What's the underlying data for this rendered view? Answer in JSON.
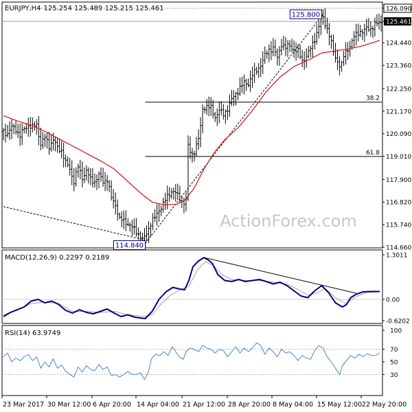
{
  "header": {
    "title": "EURJPY,H4",
    "ohlc": "125.254 125.489 125.215 125.461"
  },
  "colors": {
    "bars": "#000000",
    "ma": "#d02020",
    "macd": "#000080",
    "signal": "#a0a0a0",
    "rsi": "#4a86c8",
    "fib": "#000000",
    "grid": "#9a9a9a",
    "label_box": "#000080",
    "current_price_box": "#000000"
  },
  "chart_data": [
    {
      "type": "candlestick",
      "panel": "price",
      "ylim": [
        114.66,
        126.09
      ],
      "y_ticks": [
        "126.090",
        "125.461",
        "124.440",
        "123.360",
        "122.250",
        "121.170",
        "120.090",
        "119.010",
        "117.900",
        "116.820",
        "115.740",
        "114.660"
      ],
      "current_price": "125.461",
      "x_ticks": [
        "23 Mar 2017",
        "30 Mar 12:00",
        "6 Apr 20:00",
        "14 Apr 04:00",
        "21 Apr 12:00",
        "28 Apr 20:00",
        "8 May 04:00",
        "15 May 12:00",
        "22 May 20:00"
      ],
      "close_path": [
        [
          0,
          120.2
        ],
        [
          6,
          120.1
        ],
        [
          12,
          120.4
        ],
        [
          18,
          120.3
        ],
        [
          24,
          120.0
        ],
        [
          30,
          120.3
        ],
        [
          36,
          120.5
        ],
        [
          42,
          120.4
        ],
        [
          48,
          120.5
        ],
        [
          54,
          119.6
        ],
        [
          60,
          119.9
        ],
        [
          66,
          119.5
        ],
        [
          72,
          119.8
        ],
        [
          78,
          119.4
        ],
        [
          84,
          119.3
        ],
        [
          90,
          118.7
        ],
        [
          96,
          118.4
        ],
        [
          102,
          117.8
        ],
        [
          108,
          118.5
        ],
        [
          114,
          118.0
        ],
        [
          120,
          118.3
        ],
        [
          126,
          117.9
        ],
        [
          132,
          117.8
        ],
        [
          138,
          118.1
        ],
        [
          144,
          117.8
        ],
        [
          150,
          117.9
        ],
        [
          156,
          117.0
        ],
        [
          162,
          116.7
        ],
        [
          168,
          116.0
        ],
        [
          174,
          115.9
        ],
        [
          180,
          115.8
        ],
        [
          186,
          115.6
        ],
        [
          192,
          115.4
        ],
        [
          198,
          115.2
        ],
        [
          202,
          114.95
        ],
        [
          208,
          115.4
        ],
        [
          214,
          115.9
        ],
        [
          220,
          116.1
        ],
        [
          226,
          116.5
        ],
        [
          232,
          116.8
        ],
        [
          238,
          117.1
        ],
        [
          244,
          117.4
        ],
        [
          248,
          117.3
        ],
        [
          254,
          117.0
        ],
        [
          260,
          116.8
        ],
        [
          264,
          116.9
        ],
        [
          266,
          119.6
        ],
        [
          270,
          119.2
        ],
        [
          274,
          119.1
        ],
        [
          280,
          119.6
        ],
        [
          284,
          120.1
        ],
        [
          288,
          121.3
        ],
        [
          294,
          121.4
        ],
        [
          300,
          121.3
        ],
        [
          306,
          120.9
        ],
        [
          312,
          121.2
        ],
        [
          318,
          121.0
        ],
        [
          324,
          121.3
        ],
        [
          330,
          121.7
        ],
        [
          336,
          122.0
        ],
        [
          342,
          122.3
        ],
        [
          348,
          122.5
        ],
        [
          354,
          122.5
        ],
        [
          360,
          122.9
        ],
        [
          366,
          123.1
        ],
        [
          372,
          123.4
        ],
        [
          378,
          123.8
        ],
        [
          384,
          124.1
        ],
        [
          390,
          124.2
        ],
        [
          396,
          123.7
        ],
        [
          402,
          124.4
        ],
        [
          408,
          124.2
        ],
        [
          414,
          124.3
        ],
        [
          420,
          124.1
        ],
        [
          426,
          124.0
        ],
        [
          432,
          123.6
        ],
        [
          436,
          123.7
        ],
        [
          442,
          124.0
        ],
        [
          448,
          124.5
        ],
        [
          452,
          124.8
        ],
        [
          456,
          125.2
        ],
        [
          460,
          125.8
        ],
        [
          466,
          125.3
        ],
        [
          470,
          124.9
        ],
        [
          474,
          124.4
        ],
        [
          478,
          123.9
        ],
        [
          484,
          123.5
        ],
        [
          488,
          123.2
        ],
        [
          492,
          123.8
        ],
        [
          496,
          124.1
        ],
        [
          502,
          124.3
        ],
        [
          508,
          124.8
        ],
        [
          514,
          125.0
        ],
        [
          520,
          124.9
        ],
        [
          526,
          125.2
        ],
        [
          532,
          125.1
        ],
        [
          538,
          125.3
        ],
        [
          544,
          125.461
        ]
      ],
      "ma_path": [
        [
          0,
          120.95
        ],
        [
          20,
          120.7
        ],
        [
          40,
          120.5
        ],
        [
          60,
          120.2
        ],
        [
          80,
          119.85
        ],
        [
          100,
          119.5
        ],
        [
          120,
          119.15
        ],
        [
          140,
          118.8
        ],
        [
          160,
          118.4
        ],
        [
          180,
          117.8
        ],
        [
          200,
          117.2
        ],
        [
          215,
          116.82
        ],
        [
          230,
          116.7
        ],
        [
          250,
          116.7
        ],
        [
          262,
          116.9
        ],
        [
          276,
          117.5
        ],
        [
          290,
          118.4
        ],
        [
          305,
          119.2
        ],
        [
          320,
          119.8
        ],
        [
          340,
          120.4
        ],
        [
          360,
          121.2
        ],
        [
          380,
          122.1
        ],
        [
          400,
          122.8
        ],
        [
          420,
          123.3
        ],
        [
          440,
          123.6
        ],
        [
          460,
          123.95
        ],
        [
          480,
          124.05
        ],
        [
          500,
          124.15
        ],
        [
          520,
          124.3
        ],
        [
          544,
          124.55
        ]
      ],
      "trendlines": [
        {
          "from": [
            0,
            116.6
          ],
          "to": [
            205,
            115.0
          ]
        },
        {
          "from": [
            205,
            114.84
          ],
          "to": [
            462,
            125.8
          ]
        }
      ],
      "labels": [
        {
          "text": "125.800",
          "at": [
            462,
            125.8
          ]
        },
        {
          "text": "114.840",
          "at": [
            205,
            114.84
          ]
        }
      ],
      "fib_levels": [
        {
          "label": "38.2",
          "value": 121.6
        },
        {
          "label": "61.8",
          "value": 119.0
        }
      ],
      "watermark": "ActionForex.com"
    },
    {
      "type": "line",
      "panel": "macd",
      "title": "MACD(12,26,9) 0.2297 0.2189",
      "ylim": [
        -0.6202,
        1.3011
      ],
      "y_ticks": [
        "1.3011",
        "0.00",
        "-0.6202"
      ],
      "macd_path": [
        [
          0,
          -0.5
        ],
        [
          10,
          -0.38
        ],
        [
          20,
          -0.3
        ],
        [
          30,
          -0.22
        ],
        [
          40,
          -0.05
        ],
        [
          50,
          0.0
        ],
        [
          60,
          -0.1
        ],
        [
          70,
          -0.05
        ],
        [
          80,
          -0.15
        ],
        [
          90,
          -0.32
        ],
        [
          100,
          -0.4
        ],
        [
          110,
          -0.3
        ],
        [
          120,
          -0.38
        ],
        [
          130,
          -0.42
        ],
        [
          140,
          -0.35
        ],
        [
          150,
          -0.28
        ],
        [
          160,
          -0.4
        ],
        [
          170,
          -0.5
        ],
        [
          180,
          -0.45
        ],
        [
          190,
          -0.52
        ],
        [
          205,
          -0.56
        ],
        [
          215,
          -0.35
        ],
        [
          225,
          0.0
        ],
        [
          235,
          0.22
        ],
        [
          245,
          0.35
        ],
        [
          255,
          0.3
        ],
        [
          262,
          0.28
        ],
        [
          268,
          0.55
        ],
        [
          274,
          0.95
        ],
        [
          282,
          1.12
        ],
        [
          290,
          1.22
        ],
        [
          296,
          1.15
        ],
        [
          302,
          1.05
        ],
        [
          310,
          0.72
        ],
        [
          320,
          0.55
        ],
        [
          330,
          0.52
        ],
        [
          340,
          0.58
        ],
        [
          350,
          0.52
        ],
        [
          360,
          0.55
        ],
        [
          370,
          0.58
        ],
        [
          380,
          0.52
        ],
        [
          390,
          0.45
        ],
        [
          400,
          0.5
        ],
        [
          410,
          0.4
        ],
        [
          420,
          0.25
        ],
        [
          430,
          0.1
        ],
        [
          440,
          0.05
        ],
        [
          450,
          0.25
        ],
        [
          460,
          0.4
        ],
        [
          465,
          0.3
        ],
        [
          470,
          0.2
        ],
        [
          480,
          -0.1
        ],
        [
          490,
          -0.22
        ],
        [
          496,
          -0.15
        ],
        [
          502,
          0.05
        ],
        [
          510,
          0.15
        ],
        [
          520,
          0.22
        ],
        [
          530,
          0.23
        ],
        [
          544,
          0.23
        ]
      ],
      "signal_path": [
        [
          0,
          -0.45
        ],
        [
          20,
          -0.32
        ],
        [
          40,
          -0.12
        ],
        [
          60,
          -0.08
        ],
        [
          80,
          -0.12
        ],
        [
          100,
          -0.35
        ],
        [
          120,
          -0.35
        ],
        [
          140,
          -0.38
        ],
        [
          160,
          -0.35
        ],
        [
          180,
          -0.45
        ],
        [
          205,
          -0.5
        ],
        [
          215,
          -0.45
        ],
        [
          225,
          -0.2
        ],
        [
          240,
          0.1
        ],
        [
          255,
          0.28
        ],
        [
          268,
          0.38
        ],
        [
          280,
          0.85
        ],
        [
          292,
          1.1
        ],
        [
          304,
          0.98
        ],
        [
          316,
          0.72
        ],
        [
          330,
          0.58
        ],
        [
          350,
          0.55
        ],
        [
          370,
          0.55
        ],
        [
          390,
          0.5
        ],
        [
          410,
          0.44
        ],
        [
          425,
          0.3
        ],
        [
          440,
          0.12
        ],
        [
          455,
          0.2
        ],
        [
          465,
          0.32
        ],
        [
          480,
          0.05
        ],
        [
          495,
          -0.12
        ],
        [
          510,
          0.08
        ],
        [
          525,
          0.2
        ],
        [
          544,
          0.22
        ]
      ],
      "trendline": {
        "from": [
          290,
          1.22
        ],
        "to": [
          510,
          0.18
        ]
      }
    },
    {
      "type": "line",
      "panel": "rsi",
      "title": "RSI(14) 63.9749",
      "ylim": [
        0,
        100
      ],
      "y_ticks": [
        "100",
        "70",
        "50",
        "30"
      ],
      "levels": [
        70,
        30
      ],
      "rsi_path": [
        [
          0,
          58
        ],
        [
          6,
          64
        ],
        [
          12,
          50
        ],
        [
          18,
          56
        ],
        [
          24,
          52
        ],
        [
          30,
          58
        ],
        [
          36,
          62
        ],
        [
          42,
          52
        ],
        [
          48,
          58
        ],
        [
          54,
          40
        ],
        [
          60,
          50
        ],
        [
          66,
          42
        ],
        [
          72,
          55
        ],
        [
          78,
          40
        ],
        [
          84,
          45
        ],
        [
          90,
          35
        ],
        [
          96,
          30
        ],
        [
          102,
          26
        ],
        [
          108,
          42
        ],
        [
          114,
          34
        ],
        [
          120,
          44
        ],
        [
          126,
          38
        ],
        [
          132,
          36
        ],
        [
          138,
          46
        ],
        [
          144,
          38
        ],
        [
          150,
          42
        ],
        [
          156,
          28
        ],
        [
          162,
          30
        ],
        [
          168,
          26
        ],
        [
          174,
          30
        ],
        [
          180,
          35
        ],
        [
          186,
          30
        ],
        [
          192,
          30
        ],
        [
          198,
          33
        ],
        [
          204,
          22
        ],
        [
          210,
          35
        ],
        [
          214,
          55
        ],
        [
          220,
          62
        ],
        [
          226,
          60
        ],
        [
          232,
          66
        ],
        [
          238,
          60
        ],
        [
          244,
          74
        ],
        [
          248,
          68
        ],
        [
          254,
          58
        ],
        [
          260,
          54
        ],
        [
          264,
          66
        ],
        [
          270,
          72
        ],
        [
          276,
          70
        ],
        [
          282,
          66
        ],
        [
          288,
          76
        ],
        [
          294,
          72
        ],
        [
          300,
          70
        ],
        [
          306,
          64
        ],
        [
          312,
          70
        ],
        [
          318,
          68
        ],
        [
          324,
          58
        ],
        [
          330,
          66
        ],
        [
          336,
          74
        ],
        [
          342,
          64
        ],
        [
          348,
          72
        ],
        [
          354,
          66
        ],
        [
          360,
          72
        ],
        [
          366,
          80
        ],
        [
          372,
          76
        ],
        [
          378,
          62
        ],
        [
          384,
          72
        ],
        [
          390,
          66
        ],
        [
          396,
          58
        ],
        [
          402,
          70
        ],
        [
          408,
          64
        ],
        [
          414,
          66
        ],
        [
          420,
          60
        ],
        [
          426,
          52
        ],
        [
          432,
          60
        ],
        [
          438,
          56
        ],
        [
          444,
          54
        ],
        [
          450,
          68
        ],
        [
          456,
          76
        ],
        [
          462,
          72
        ],
        [
          468,
          58
        ],
        [
          474,
          50
        ],
        [
          480,
          40
        ],
        [
          486,
          30
        ],
        [
          490,
          44
        ],
        [
          496,
          52
        ],
        [
          502,
          60
        ],
        [
          508,
          56
        ],
        [
          514,
          62
        ],
        [
          520,
          58
        ],
        [
          526,
          63
        ],
        [
          532,
          60
        ],
        [
          538,
          60
        ],
        [
          544,
          64
        ]
      ]
    }
  ]
}
